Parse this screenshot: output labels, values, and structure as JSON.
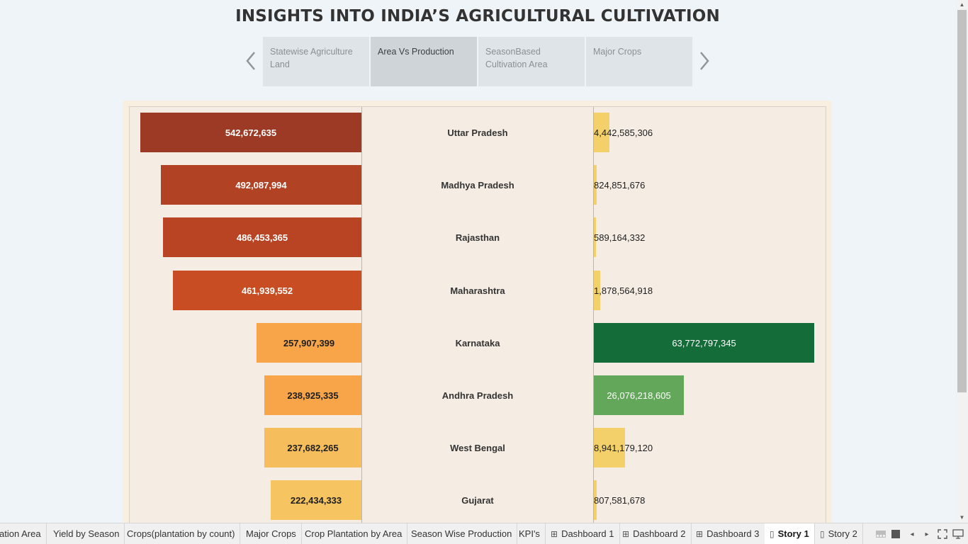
{
  "title": "INSIGHTS INTO INDIA’S AGRICULTURAL CULTIVATION",
  "story_points": [
    {
      "label": "Statewise Agriculture Land"
    },
    {
      "label": "Area Vs Production"
    },
    {
      "label": "SeasonBased Cultivation Area"
    },
    {
      "label": "Major Crops"
    }
  ],
  "active_story_point": "Area Vs Production",
  "chart_data": {
    "type": "bar",
    "categories": [
      "Uttar Pradesh",
      "Madhya Pradesh",
      "Rajasthan",
      "Maharashtra",
      "Karnataka",
      "Andhra Pradesh",
      "West Bengal",
      "Gujarat"
    ],
    "area": {
      "values": [
        542672635,
        492087994,
        486453365,
        461939552,
        257907399,
        238925335,
        237682265,
        222434333
      ],
      "labels": [
        "542,672,635",
        "492,087,994",
        "486,453,365",
        "461,939,552",
        "257,907,399",
        "238,925,335",
        "237,682,265",
        "222,434,333"
      ],
      "colors": [
        "#9c3a25",
        "#b24224",
        "#b84424",
        "#c84d22",
        "#f8a54a",
        "#f8a54a",
        "#f6bd5c",
        "#f6c461"
      ]
    },
    "production": {
      "values": [
        4442585306,
        824851676,
        589164332,
        1878564918,
        63772797345,
        26076218605,
        8941179120,
        807581678
      ],
      "labels": [
        "4,442,585,306",
        "824,851,676",
        "589,164,332",
        "1,878,564,918",
        "63,772,797,345",
        "26,076,218,605",
        "8,941,179,120",
        "807,581,678"
      ],
      "colors": [
        "#f3d06a",
        "#f3d06a",
        "#f3d06a",
        "#f3d06a",
        "#146c38",
        "#63a85a",
        "#f3d06a",
        "#f3d06a"
      ]
    }
  },
  "tabs": [
    {
      "label": "ation Area",
      "icon": ""
    },
    {
      "label": "Yield by Season",
      "icon": ""
    },
    {
      "label": "Crops(plantation by count)",
      "icon": ""
    },
    {
      "label": "Major Crops",
      "icon": ""
    },
    {
      "label": "Crop Plantation by Area",
      "icon": ""
    },
    {
      "label": "Season Wise Production",
      "icon": ""
    },
    {
      "label": "KPI's",
      "icon": ""
    },
    {
      "label": "Dashboard 1",
      "icon": "dashboard-icon"
    },
    {
      "label": "Dashboard 2",
      "icon": "dashboard-icon"
    },
    {
      "label": "Dashboard 3",
      "icon": "dashboard-icon"
    },
    {
      "label": "Story 1",
      "icon": "story-icon"
    },
    {
      "label": "Story 2",
      "icon": "story-icon"
    }
  ],
  "active_tab": "Story 1",
  "colors": {
    "background": "#eef4f8",
    "viz_background": "#f5ede3"
  }
}
